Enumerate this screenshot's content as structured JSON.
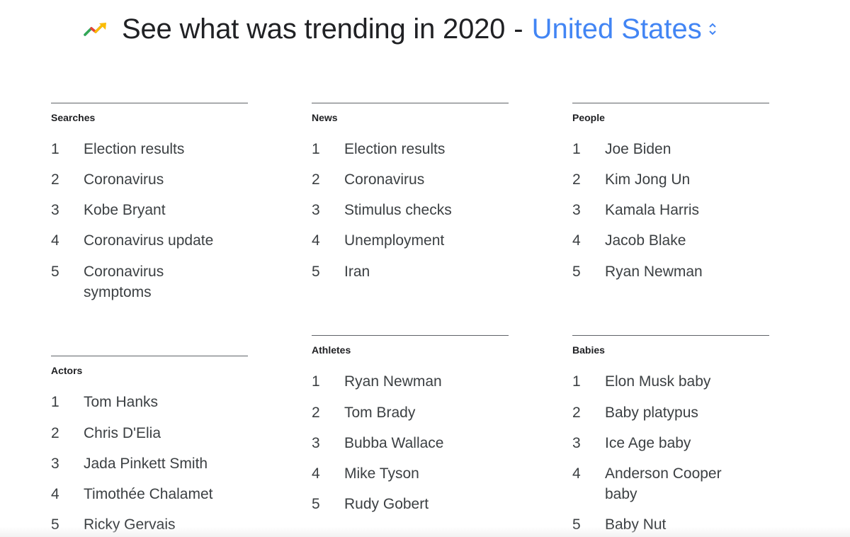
{
  "header": {
    "title": "See what was trending in 2020",
    "separator": "-",
    "region": "United States",
    "icon": "trending-up-icon",
    "region_color": "#4285f4"
  },
  "sections": {
    "searches": {
      "title": "Searches",
      "items": [
        {
          "rank": "1",
          "label": "Election results"
        },
        {
          "rank": "2",
          "label": "Coronavirus"
        },
        {
          "rank": "3",
          "label": "Kobe Bryant"
        },
        {
          "rank": "4",
          "label": "Coronavirus update"
        },
        {
          "rank": "5",
          "label": "Coronavirus symptoms"
        }
      ]
    },
    "news": {
      "title": "News",
      "items": [
        {
          "rank": "1",
          "label": "Election results"
        },
        {
          "rank": "2",
          "label": "Coronavirus"
        },
        {
          "rank": "3",
          "label": "Stimulus checks"
        },
        {
          "rank": "4",
          "label": "Unemployment"
        },
        {
          "rank": "5",
          "label": "Iran"
        }
      ]
    },
    "people": {
      "title": "People",
      "items": [
        {
          "rank": "1",
          "label": "Joe Biden"
        },
        {
          "rank": "2",
          "label": "Kim Jong Un"
        },
        {
          "rank": "3",
          "label": "Kamala Harris"
        },
        {
          "rank": "4",
          "label": "Jacob Blake"
        },
        {
          "rank": "5",
          "label": "Ryan Newman"
        }
      ]
    },
    "actors": {
      "title": "Actors",
      "items": [
        {
          "rank": "1",
          "label": "Tom Hanks"
        },
        {
          "rank": "2",
          "label": "Chris D'Elia"
        },
        {
          "rank": "3",
          "label": "Jada Pinkett Smith"
        },
        {
          "rank": "4",
          "label": "Timothée Chalamet"
        },
        {
          "rank": "5",
          "label": "Ricky Gervais"
        }
      ]
    },
    "athletes": {
      "title": "Athletes",
      "items": [
        {
          "rank": "1",
          "label": "Ryan Newman"
        },
        {
          "rank": "2",
          "label": "Tom Brady"
        },
        {
          "rank": "3",
          "label": "Bubba Wallace"
        },
        {
          "rank": "4",
          "label": "Mike Tyson"
        },
        {
          "rank": "5",
          "label": "Rudy Gobert"
        }
      ]
    },
    "babies": {
      "title": "Babies",
      "items": [
        {
          "rank": "1",
          "label": "Elon Musk baby"
        },
        {
          "rank": "2",
          "label": "Baby platypus"
        },
        {
          "rank": "3",
          "label": "Ice Age baby"
        },
        {
          "rank": "4",
          "label": "Anderson Cooper baby"
        },
        {
          "rank": "5",
          "label": "Baby Nut"
        }
      ]
    }
  }
}
